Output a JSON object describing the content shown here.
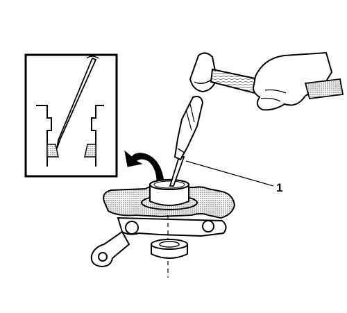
{
  "diagram": {
    "callouts": [
      {
        "id": "1",
        "label": "1"
      }
    ],
    "colors": {
      "line": "#000000",
      "background": "#ffffff",
      "stipple": "#000000"
    }
  }
}
